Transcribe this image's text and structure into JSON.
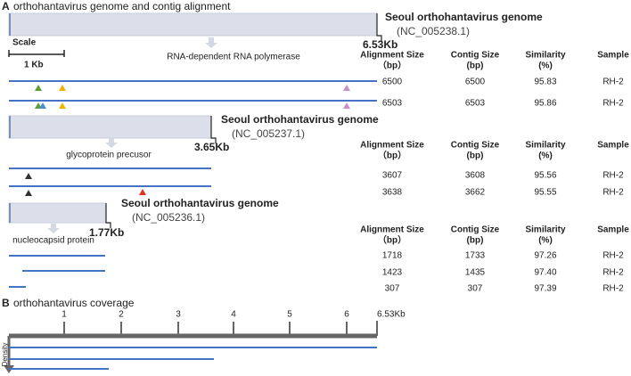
{
  "panel_a": {
    "label": "A",
    "title": "orthohantavirus genome and contig alignment",
    "scale": {
      "title": "Scale",
      "size": "1 Kb"
    },
    "segments": [
      {
        "genome": "Seoul orthohantavirus genome",
        "accession": "(NC_005238.1)",
        "length": "6.53Kb",
        "gene": "RNA-dependent RNA polymerase",
        "headers": [
          {
            "line1": "Alignment Size",
            "line2": "（bp）"
          },
          {
            "line1": "Contig Size",
            "line2": "(bp)"
          },
          {
            "line1": "Similarity",
            "line2": "(%)"
          },
          {
            "line1": "Sample"
          }
        ],
        "rows": [
          [
            "6500",
            "6500",
            "95.83",
            "RH-2"
          ],
          [
            "6503",
            "6503",
            "95.86",
            "RH-2"
          ]
        ]
      },
      {
        "genome": "Seoul orthohantavirus genome",
        "accession": "(NC_005237.1)",
        "length": "3.65Kb",
        "gene": "glycoprotein precusor",
        "headers": [
          {
            "line1": "Alignment Size",
            "line2": "（bp）"
          },
          {
            "line1": "Contig Size",
            "line2": "(bp)"
          },
          {
            "line1": "Similarity",
            "line2": "(%)"
          },
          {
            "line1": "Sample"
          }
        ],
        "rows": [
          [
            "3607",
            "3608",
            "95.56",
            "RH-2"
          ],
          [
            "3638",
            "3662",
            "95.55",
            "RH-2"
          ]
        ]
      },
      {
        "genome": "Seoul orthohantavirus genome",
        "accession": "(NC_005236.1)",
        "length": "1.77Kb",
        "gene": "nucleocapsid protein",
        "headers": [
          {
            "line1": "Alignment Size",
            "line2": "（bp）"
          },
          {
            "line1": "Contig Size",
            "line2": "(bp)"
          },
          {
            "line1": "Similarity",
            "line2": "(%)"
          },
          {
            "line1": "Sample"
          }
        ],
        "rows": [
          [
            "1718",
            "1733",
            "97.26",
            "RH-2"
          ],
          [
            "1423",
            "1435",
            "97.40",
            "RH-2"
          ],
          [
            "307",
            "307",
            "97.39",
            "RH-2"
          ]
        ]
      }
    ]
  },
  "panel_b": {
    "label": "B",
    "title": "orthohantavirus coverage",
    "axis_labels": [
      "1",
      "2",
      "3",
      "4",
      "5",
      "6",
      "6.53Kb"
    ],
    "y_label": "Density"
  }
}
